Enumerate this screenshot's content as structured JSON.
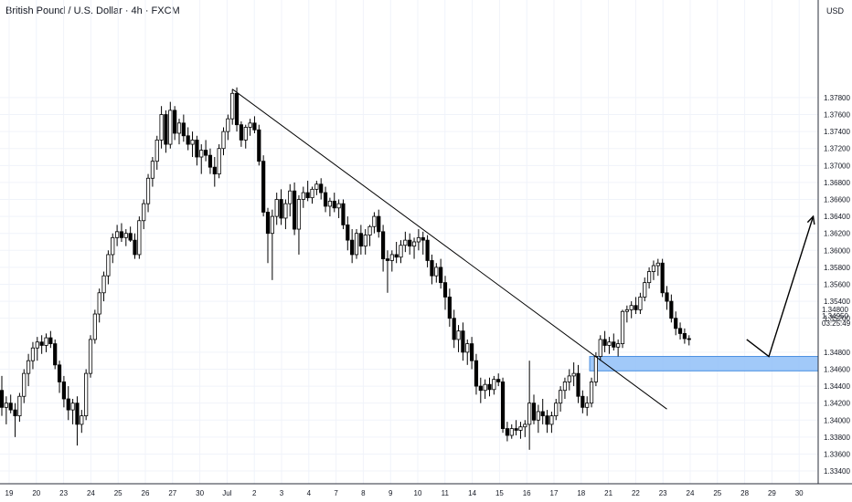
{
  "header": {
    "title": "British Pound / U.S. Dollar · 4h · FXCM",
    "currency": "USD"
  },
  "colors": {
    "candle_up_fill": "#ffffff",
    "candle_down_fill": "#000000",
    "candle_outline": "#000000",
    "zone_fill": "#90c0f8",
    "zone_stroke": "#4a90e2",
    "grid": "#f0f3fa",
    "axis_line": "#2a2e39",
    "trendline": "#000000"
  },
  "price_panel": {
    "last_price": "1.34950",
    "countdown": "03:25:49",
    "hidden_tick_label": "1.34800"
  },
  "chart_data": {
    "type": "candlestick",
    "title": "British Pound / U.S. Dollar · 4h · FXCM",
    "y_axis": {
      "unit": "USD",
      "range": [
        1.3325,
        1.3895
      ],
      "tick_labels": [
        "1.37800",
        "1.37600",
        "1.37400",
        "1.37200",
        "1.37000",
        "1.36800",
        "1.36600",
        "1.36400",
        "1.36200",
        "1.36000",
        "1.35800",
        "1.35600",
        "1.35400",
        "1.35200",
        "1.34800",
        "1.34600",
        "1.34400",
        "1.34200",
        "1.34000",
        "1.33800",
        "1.33600",
        "1.33400"
      ]
    },
    "x_axis": {
      "tick_labels": [
        "19",
        "20",
        "23",
        "24",
        "25",
        "26",
        "27",
        "30",
        "Jul",
        "2",
        "3",
        "4",
        "7",
        "8",
        "9",
        "10",
        "11",
        "14",
        "15",
        "16",
        "17",
        "18",
        "21",
        "22",
        "23",
        "24",
        "25",
        "28",
        "29",
        "30"
      ]
    },
    "grid": true,
    "candles": [
      [
        1.3435,
        1.3452,
        1.3405,
        1.3415
      ],
      [
        1.3415,
        1.3428,
        1.3395,
        1.342
      ],
      [
        1.342,
        1.343,
        1.3408,
        1.3412
      ],
      [
        1.3412,
        1.342,
        1.338,
        1.3405
      ],
      [
        1.3405,
        1.3432,
        1.3398,
        1.3428
      ],
      [
        1.3428,
        1.346,
        1.342,
        1.3455
      ],
      [
        1.3455,
        1.3478,
        1.344,
        1.347
      ],
      [
        1.347,
        1.3492,
        1.346,
        1.3485
      ],
      [
        1.3485,
        1.3498,
        1.347,
        1.3492
      ],
      [
        1.3492,
        1.35,
        1.3478,
        1.3488
      ],
      [
        1.3488,
        1.3502,
        1.348,
        1.3497
      ],
      [
        1.3497,
        1.3505,
        1.3485,
        1.349
      ],
      [
        1.349,
        1.3495,
        1.346,
        1.3465
      ],
      [
        1.3465,
        1.347,
        1.3432,
        1.3445
      ],
      [
        1.3445,
        1.3452,
        1.3415,
        1.3425
      ],
      [
        1.3425,
        1.344,
        1.34,
        1.3412
      ],
      [
        1.3412,
        1.3425,
        1.3395,
        1.342
      ],
      [
        1.342,
        1.3428,
        1.337,
        1.3395
      ],
      [
        1.3395,
        1.3412,
        1.3385,
        1.3405
      ],
      [
        1.3405,
        1.346,
        1.34,
        1.3455
      ],
      [
        1.3455,
        1.35,
        1.345,
        1.3495
      ],
      [
        1.3495,
        1.353,
        1.349,
        1.3525
      ],
      [
        1.3525,
        1.3555,
        1.3515,
        1.355
      ],
      [
        1.355,
        1.3575,
        1.354,
        1.357
      ],
      [
        1.357,
        1.36,
        1.356,
        1.3595
      ],
      [
        1.3595,
        1.362,
        1.3585,
        1.3615
      ],
      [
        1.3615,
        1.363,
        1.3605,
        1.3622
      ],
      [
        1.3622,
        1.3632,
        1.361,
        1.3615
      ],
      [
        1.3615,
        1.3625,
        1.3605,
        1.362
      ],
      [
        1.362,
        1.3628,
        1.361,
        1.3612
      ],
      [
        1.3612,
        1.362,
        1.359,
        1.3595
      ],
      [
        1.3595,
        1.364,
        1.359,
        1.3635
      ],
      [
        1.3635,
        1.366,
        1.3625,
        1.3655
      ],
      [
        1.3655,
        1.369,
        1.3645,
        1.3685
      ],
      [
        1.3685,
        1.371,
        1.3675,
        1.3705
      ],
      [
        1.3705,
        1.3735,
        1.3695,
        1.373
      ],
      [
        1.373,
        1.377,
        1.372,
        1.376
      ],
      [
        1.376,
        1.3765,
        1.3715,
        1.3725
      ],
      [
        1.3725,
        1.3775,
        1.372,
        1.3765
      ],
      [
        1.3765,
        1.377,
        1.373,
        1.3738
      ],
      [
        1.3738,
        1.3755,
        1.3725,
        1.375
      ],
      [
        1.375,
        1.376,
        1.3728,
        1.3735
      ],
      [
        1.3735,
        1.3745,
        1.3718,
        1.3725
      ],
      [
        1.3725,
        1.374,
        1.371,
        1.373
      ],
      [
        1.373,
        1.3735,
        1.37,
        1.371
      ],
      [
        1.371,
        1.3725,
        1.369,
        1.3718
      ],
      [
        1.3718,
        1.373,
        1.3705,
        1.3712
      ],
      [
        1.3712,
        1.372,
        1.369,
        1.3698
      ],
      [
        1.3698,
        1.371,
        1.3675,
        1.369
      ],
      [
        1.369,
        1.3725,
        1.3685,
        1.372
      ],
      [
        1.372,
        1.3745,
        1.3712,
        1.374
      ],
      [
        1.374,
        1.376,
        1.373,
        1.3755
      ],
      [
        1.3755,
        1.379,
        1.3748,
        1.3785
      ],
      [
        1.3785,
        1.3792,
        1.374,
        1.3748
      ],
      [
        1.3748,
        1.3752,
        1.3722,
        1.373
      ],
      [
        1.373,
        1.3748,
        1.372,
        1.3745
      ],
      [
        1.3745,
        1.3755,
        1.3735,
        1.375
      ],
      [
        1.375,
        1.3758,
        1.3738,
        1.3742
      ],
      [
        1.3742,
        1.3748,
        1.37,
        1.3705
      ],
      [
        1.3705,
        1.3712,
        1.364,
        1.3645
      ],
      [
        1.3645,
        1.365,
        1.3585,
        1.362
      ],
      [
        1.362,
        1.3648,
        1.3565,
        1.364
      ],
      [
        1.364,
        1.3668,
        1.363,
        1.366
      ],
      [
        1.366,
        1.3672,
        1.363,
        1.3638
      ],
      [
        1.3638,
        1.366,
        1.3625,
        1.3655
      ],
      [
        1.3655,
        1.3678,
        1.364,
        1.367
      ],
      [
        1.367,
        1.368,
        1.3618,
        1.3625
      ],
      [
        1.3625,
        1.3665,
        1.3595,
        1.366
      ],
      [
        1.366,
        1.3675,
        1.365,
        1.3668
      ],
      [
        1.3668,
        1.3682,
        1.3658,
        1.3662
      ],
      [
        1.3662,
        1.3675,
        1.3655,
        1.3672
      ],
      [
        1.3672,
        1.3682,
        1.3665,
        1.3678
      ],
      [
        1.3678,
        1.3685,
        1.366,
        1.3668
      ],
      [
        1.3668,
        1.3675,
        1.3645,
        1.3652
      ],
      [
        1.3652,
        1.3662,
        1.364,
        1.3658
      ],
      [
        1.3658,
        1.3668,
        1.3645,
        1.365
      ],
      [
        1.365,
        1.366,
        1.3638,
        1.3655
      ],
      [
        1.3655,
        1.366,
        1.3625,
        1.363
      ],
      [
        1.363,
        1.364,
        1.36,
        1.3612
      ],
      [
        1.3612,
        1.3625,
        1.3585,
        1.3595
      ],
      [
        1.3595,
        1.3625,
        1.359,
        1.362
      ],
      [
        1.362,
        1.363,
        1.3595,
        1.3605
      ],
      [
        1.3605,
        1.3625,
        1.3595,
        1.3618
      ],
      [
        1.3618,
        1.363,
        1.3605,
        1.3628
      ],
      [
        1.3628,
        1.3645,
        1.362,
        1.364
      ],
      [
        1.364,
        1.3648,
        1.3615,
        1.3622
      ],
      [
        1.3622,
        1.363,
        1.3575,
        1.359
      ],
      [
        1.359,
        1.36,
        1.355,
        1.3588
      ],
      [
        1.3588,
        1.36,
        1.3575,
        1.3595
      ],
      [
        1.3595,
        1.361,
        1.3585,
        1.3592
      ],
      [
        1.3592,
        1.3612,
        1.3585,
        1.3606
      ],
      [
        1.3606,
        1.3622,
        1.3598,
        1.3612
      ],
      [
        1.3612,
        1.362,
        1.3595,
        1.3605
      ],
      [
        1.3605,
        1.3615,
        1.359,
        1.361
      ],
      [
        1.361,
        1.3625,
        1.36,
        1.3615
      ],
      [
        1.3615,
        1.3622,
        1.3595,
        1.3612
      ],
      [
        1.3612,
        1.3618,
        1.358,
        1.3588
      ],
      [
        1.3588,
        1.3595,
        1.356,
        1.357
      ],
      [
        1.357,
        1.3585,
        1.3562,
        1.358
      ],
      [
        1.358,
        1.359,
        1.3555,
        1.3562
      ],
      [
        1.3562,
        1.357,
        1.353,
        1.3545
      ],
      [
        1.3545,
        1.3555,
        1.351,
        1.352
      ],
      [
        1.352,
        1.353,
        1.3485,
        1.3495
      ],
      [
        1.3495,
        1.3512,
        1.348,
        1.3505
      ],
      [
        1.3505,
        1.3515,
        1.347,
        1.348
      ],
      [
        1.348,
        1.3495,
        1.3465,
        1.349
      ],
      [
        1.349,
        1.3498,
        1.346,
        1.347
      ],
      [
        1.347,
        1.3478,
        1.343,
        1.344
      ],
      [
        1.344,
        1.345,
        1.342,
        1.3435
      ],
      [
        1.3435,
        1.3448,
        1.3425,
        1.3442
      ],
      [
        1.3442,
        1.345,
        1.3428,
        1.3436
      ],
      [
        1.3436,
        1.3452,
        1.343,
        1.3448
      ],
      [
        1.3448,
        1.3455,
        1.344,
        1.3445
      ],
      [
        1.3445,
        1.345,
        1.3385,
        1.339
      ],
      [
        1.339,
        1.3398,
        1.3375,
        1.3382
      ],
      [
        1.3382,
        1.3395,
        1.3378,
        1.339
      ],
      [
        1.339,
        1.34,
        1.3382,
        1.3388
      ],
      [
        1.3388,
        1.3398,
        1.3378,
        1.3392
      ],
      [
        1.3392,
        1.34,
        1.338,
        1.3395
      ],
      [
        1.3395,
        1.347,
        1.3365,
        1.342
      ],
      [
        1.342,
        1.343,
        1.3395,
        1.34
      ],
      [
        1.34,
        1.3418,
        1.3385,
        1.341
      ],
      [
        1.341,
        1.3425,
        1.3395,
        1.3405
      ],
      [
        1.3405,
        1.3412,
        1.3385,
        1.3395
      ],
      [
        1.3395,
        1.341,
        1.3385,
        1.3405
      ],
      [
        1.3405,
        1.3425,
        1.34,
        1.342
      ],
      [
        1.342,
        1.344,
        1.341,
        1.3435
      ],
      [
        1.3435,
        1.345,
        1.3425,
        1.3445
      ],
      [
        1.3445,
        1.346,
        1.3435,
        1.3452
      ],
      [
        1.3452,
        1.3468,
        1.344,
        1.3455
      ],
      [
        1.3455,
        1.3465,
        1.342,
        1.3428
      ],
      [
        1.3428,
        1.3435,
        1.3408,
        1.3415
      ],
      [
        1.3415,
        1.3428,
        1.3405,
        1.342
      ],
      [
        1.342,
        1.345,
        1.3415,
        1.3445
      ],
      [
        1.3445,
        1.348,
        1.344,
        1.3475
      ],
      [
        1.3475,
        1.35,
        1.347,
        1.3495
      ],
      [
        1.3495,
        1.3505,
        1.348,
        1.3488
      ],
      [
        1.3488,
        1.3498,
        1.3478,
        1.3492
      ],
      [
        1.3492,
        1.3502,
        1.3482,
        1.3486
      ],
      [
        1.3486,
        1.3495,
        1.3475,
        1.349
      ],
      [
        1.349,
        1.353,
        1.3485,
        1.3528
      ],
      [
        1.3528,
        1.3535,
        1.3515,
        1.353
      ],
      [
        1.353,
        1.354,
        1.352,
        1.3535
      ],
      [
        1.3535,
        1.3545,
        1.3525,
        1.353
      ],
      [
        1.353,
        1.355,
        1.3525,
        1.3545
      ],
      [
        1.3545,
        1.3568,
        1.354,
        1.3562
      ],
      [
        1.3562,
        1.358,
        1.3555,
        1.3575
      ],
      [
        1.3575,
        1.3588,
        1.3565,
        1.3582
      ],
      [
        1.3582,
        1.359,
        1.357,
        1.3585
      ],
      [
        1.3585,
        1.359,
        1.3545,
        1.355
      ],
      [
        1.355,
        1.3558,
        1.353,
        1.354
      ],
      [
        1.354,
        1.3548,
        1.3515,
        1.352
      ],
      [
        1.352,
        1.3528,
        1.35,
        1.3508
      ],
      [
        1.3508,
        1.3515,
        1.3495,
        1.3502
      ],
      [
        1.3502,
        1.3508,
        1.349,
        1.3496
      ],
      [
        1.3496,
        1.35,
        1.3488,
        1.3495
      ]
    ],
    "drawings": {
      "trendline": {
        "from": {
          "bar": 52,
          "price": 1.379
        },
        "to": {
          "bar": 150,
          "price": 1.3413
        }
      },
      "demand_zone": {
        "from_bar": 133,
        "to_bar": "right_edge",
        "top": 1.3475,
        "bottom": 1.3458
      },
      "forecast_path": [
        {
          "bar": 168,
          "price": 1.3495
        },
        {
          "bar": 173,
          "price": 1.3475
        },
        {
          "bar": 183,
          "price": 1.364
        }
      ]
    }
  }
}
